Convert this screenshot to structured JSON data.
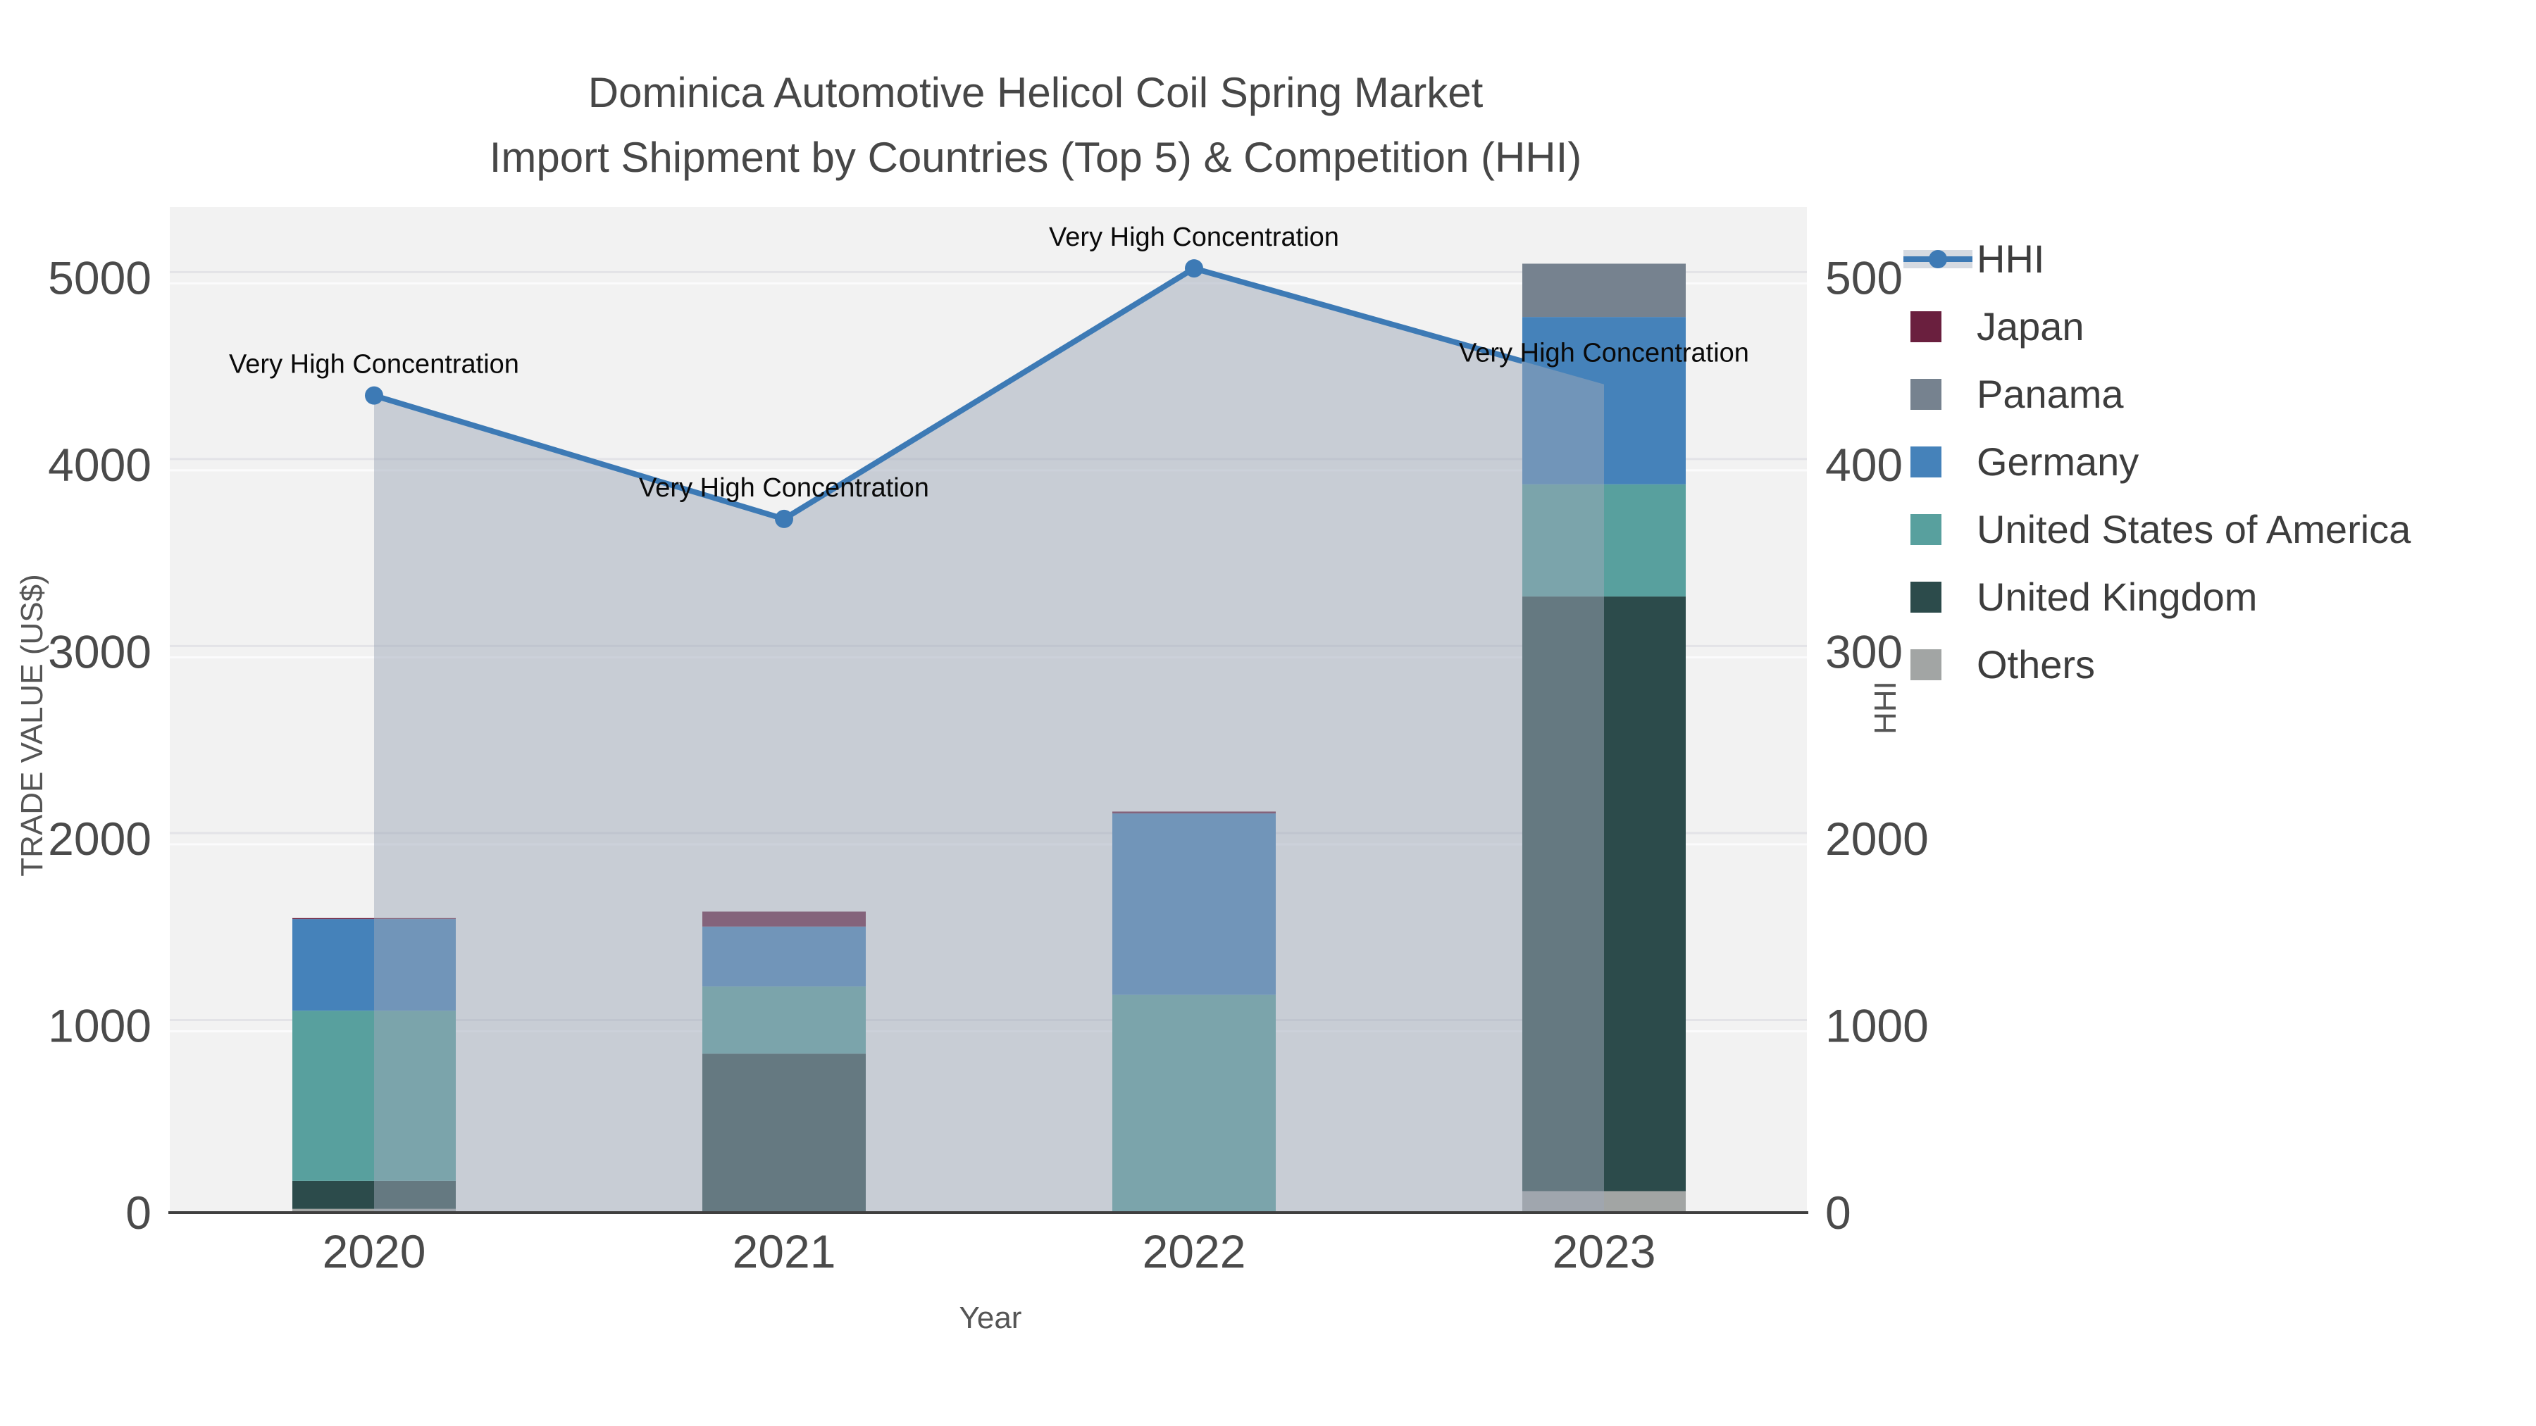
{
  "title": {
    "line1": "Dominica Automotive Helicol Coil Spring Market",
    "line2": "Import Shipment by Countries (Top 5) & Competition (HHI)"
  },
  "axes": {
    "x_label": "Year",
    "y_left_label": "TRADE VALUE (US$)",
    "y_right_label": "HHI",
    "y_left_ticks": [
      "0",
      "1000",
      "2000",
      "3000",
      "4000",
      "5000"
    ],
    "y_right_ticks": [
      "0",
      "1000",
      "2000",
      "300",
      "400",
      "500"
    ]
  },
  "legend": {
    "items": [
      "HHI",
      "Japan",
      "Panama",
      "Germany",
      "United States of America",
      "United Kingdom",
      "Others"
    ]
  },
  "chart_data": {
    "type": "bar",
    "subtype": "stacked bars (trade value, left axis) + HHI line with gray area fill (right axis)",
    "title": "Dominica Automotive Helicol Coil Spring Market Import Shipment by Countries (Top 5) & Competition (HHI)",
    "xlabel": "Year",
    "ylabel_left": "TRADE VALUE (US$)",
    "ylabel_right": "HHI",
    "categories": [
      "2020",
      "2021",
      "2022",
      "2023"
    ],
    "bar_totals": [
      1580,
      1610,
      2145,
      5075
    ],
    "series": [
      {
        "name": "Japan",
        "color": "#6a1f3e",
        "values": [
          5,
          80,
          10,
          0
        ]
      },
      {
        "name": "Panama",
        "color": "#76828f",
        "values": [
          0,
          0,
          0,
          285
        ]
      },
      {
        "name": "Germany",
        "color": "#4582ba",
        "values": [
          490,
          320,
          970,
          895
        ]
      },
      {
        "name": "United States of America",
        "color": "#58a09e",
        "values": [
          910,
          360,
          1165,
          600
        ]
      },
      {
        "name": "United Kingdom",
        "color": "#2c4b4b",
        "values": [
          150,
          850,
          0,
          3180
        ]
      },
      {
        "name": "Others",
        "color": "#a2a5a4",
        "values": [
          20,
          0,
          0,
          115
        ]
      }
    ],
    "line_series": {
      "name": "HHI",
      "axis": "right",
      "color": "#3d7ab5",
      "area_fill": "rgba(158,168,184,0.5)",
      "values": [
        437,
        371,
        505,
        443
      ]
    },
    "annotations": [
      {
        "x": "2020",
        "text": "Very High Concentration"
      },
      {
        "x": "2021",
        "text": "Very High Concentration"
      },
      {
        "x": "2022",
        "text": "Very High Concentration"
      },
      {
        "x": "2023",
        "text": "Very High Concentration"
      }
    ],
    "y_left_range": [
      0,
      5378
    ],
    "y_right_range": [
      0,
      537.8
    ],
    "grid": true,
    "legend_position": "top-right outside plot",
    "plot_bg": "#f2f2f2"
  }
}
